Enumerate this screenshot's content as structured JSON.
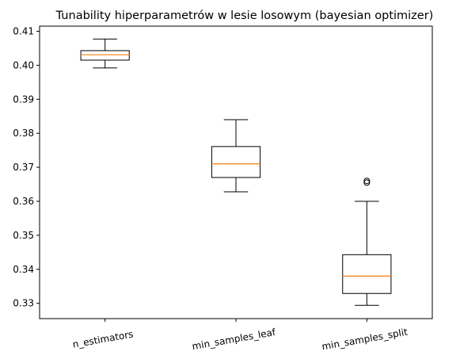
{
  "chart_data": {
    "type": "box",
    "title": "Tunability hiperparametrów w lesie losowym (bayesian optimizer)",
    "xlabel": "",
    "ylabel": "",
    "categories": [
      "n_estimators",
      "min_samples_leaf",
      "min_samples_split"
    ],
    "ylim": [
      0.3255,
      0.4115
    ],
    "yticks": [
      0.33,
      0.34,
      0.35,
      0.36,
      0.37,
      0.38,
      0.39,
      0.4,
      0.41
    ],
    "ytick_labels": [
      "0.33",
      "0.34",
      "0.35",
      "0.36",
      "0.37",
      "0.38",
      "0.39",
      "0.40",
      "0.41"
    ],
    "grid": false,
    "series": [
      {
        "category": "n_estimators",
        "whisker_low": 0.3992,
        "q1": 0.4015,
        "median": 0.4031,
        "q3": 0.4043,
        "whisker_high": 0.4077,
        "outliers": []
      },
      {
        "category": "min_samples_leaf",
        "whisker_low": 0.3628,
        "q1": 0.367,
        "median": 0.371,
        "q3": 0.3761,
        "whisker_high": 0.384,
        "outliers": []
      },
      {
        "category": "min_samples_split",
        "whisker_low": 0.3294,
        "q1": 0.3329,
        "median": 0.338,
        "q3": 0.3443,
        "whisker_high": 0.36,
        "outliers": [
          0.3655,
          0.366
        ]
      }
    ],
    "colors": {
      "box": "#000000",
      "median": "#ff7f0e",
      "axes": "#000000"
    }
  }
}
